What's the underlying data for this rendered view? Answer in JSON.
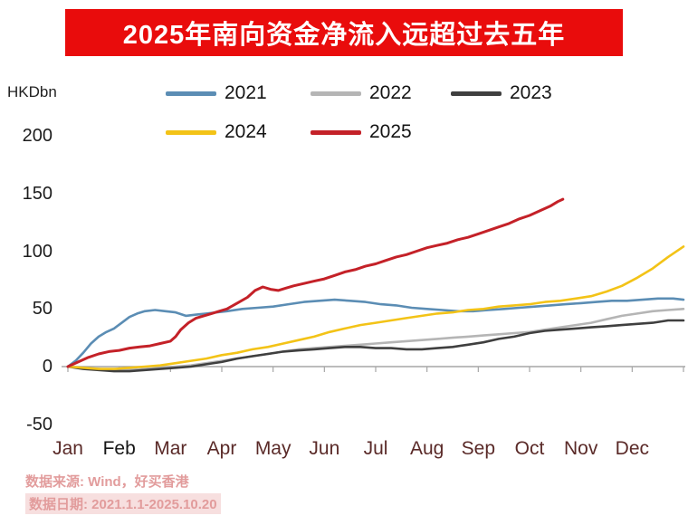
{
  "banner": {
    "title": "2025年南向资金净流入远超过去五年",
    "bg_color": "#e90c0c"
  },
  "axis": {
    "unit_label": "HKDbn",
    "y_ticks": [
      200,
      150,
      100,
      50,
      0,
      -50
    ],
    "x_labels": [
      "Jan",
      "Feb",
      "Mar",
      "Apr",
      "May",
      "Jun",
      "Jul",
      "Aug",
      "Sep",
      "Oct",
      "Nov",
      "Dec"
    ]
  },
  "legend": [
    {
      "label": "2021",
      "color": "#5b8db4"
    },
    {
      "label": "2022",
      "color": "#b5b5b5"
    },
    {
      "label": "2023",
      "color": "#3f3f3f"
    },
    {
      "label": "2024",
      "color": "#f3c317"
    },
    {
      "label": "2025",
      "color": "#c42128"
    }
  ],
  "chart_data": {
    "type": "line",
    "title": "2025年南向资金净流入远超过去五年",
    "ylabel": "HKDbn",
    "ylim": [
      -50,
      200
    ],
    "xlim_months": [
      0,
      12
    ],
    "x_unit": "months from Jan 1 (0 = Jan 1, 12 = Dec 31)",
    "grid": false,
    "legend_position": "top",
    "series": [
      {
        "name": "2021",
        "color": "#5b8db4",
        "x": [
          0,
          0.15,
          0.3,
          0.45,
          0.6,
          0.75,
          0.9,
          1.05,
          1.2,
          1.35,
          1.5,
          1.7,
          1.9,
          2.1,
          2.3,
          2.5,
          2.7,
          2.9,
          3.1,
          3.4,
          3.7,
          4.0,
          4.3,
          4.6,
          4.9,
          5.2,
          5.5,
          5.8,
          6.1,
          6.4,
          6.7,
          7.0,
          7.3,
          7.6,
          7.9,
          8.2,
          8.5,
          8.8,
          9.1,
          9.4,
          9.7,
          10.0,
          10.3,
          10.6,
          10.9,
          11.2,
          11.5,
          11.8,
          12.0
        ],
        "y": [
          0,
          5,
          12,
          20,
          26,
          30,
          33,
          38,
          43,
          46,
          48,
          49,
          48,
          47,
          44,
          45,
          46,
          47,
          48,
          50,
          51,
          52,
          54,
          56,
          57,
          58,
          57,
          56,
          54,
          53,
          51,
          50,
          49,
          48,
          48,
          49,
          50,
          51,
          52,
          53,
          54,
          55,
          56,
          57,
          57,
          58,
          59,
          59,
          58
        ]
      },
      {
        "name": "2022",
        "color": "#b5b5b5",
        "x": [
          0,
          0.3,
          0.6,
          0.9,
          1.2,
          1.5,
          1.8,
          2.1,
          2.4,
          2.7,
          3.0,
          3.3,
          3.6,
          3.9,
          4.2,
          4.5,
          4.8,
          5.1,
          5.4,
          5.7,
          6.0,
          6.3,
          6.6,
          6.9,
          7.2,
          7.5,
          7.8,
          8.1,
          8.4,
          8.7,
          9.0,
          9.3,
          9.6,
          9.9,
          10.2,
          10.5,
          10.8,
          11.1,
          11.4,
          11.7,
          12.0
        ],
        "y": [
          0,
          -1,
          -2,
          -3,
          -3,
          -2,
          -1,
          0,
          1,
          3,
          5,
          7,
          9,
          11,
          13,
          15,
          16,
          17,
          18,
          19,
          20,
          21,
          22,
          23,
          24,
          25,
          26,
          27,
          28,
          29,
          30,
          32,
          34,
          36,
          38,
          41,
          44,
          46,
          48,
          49,
          50
        ]
      },
      {
        "name": "2023",
        "color": "#3f3f3f",
        "x": [
          0,
          0.3,
          0.6,
          0.9,
          1.2,
          1.5,
          1.8,
          2.1,
          2.4,
          2.7,
          3.0,
          3.3,
          3.6,
          3.9,
          4.2,
          4.5,
          4.8,
          5.1,
          5.4,
          5.7,
          6.0,
          6.3,
          6.6,
          6.9,
          7.2,
          7.5,
          7.8,
          8.1,
          8.4,
          8.7,
          9.0,
          9.3,
          9.6,
          9.9,
          10.2,
          10.5,
          10.8,
          11.1,
          11.4,
          11.7,
          12.0
        ],
        "y": [
          0,
          -2,
          -3,
          -4,
          -4,
          -3,
          -2,
          -1,
          0,
          2,
          4,
          7,
          9,
          11,
          13,
          14,
          15,
          16,
          17,
          17,
          16,
          16,
          15,
          15,
          16,
          17,
          19,
          21,
          24,
          26,
          29,
          31,
          32,
          33,
          34,
          35,
          36,
          37,
          38,
          40,
          40
        ]
      },
      {
        "name": "2024",
        "color": "#f3c317",
        "x": [
          0,
          0.3,
          0.6,
          0.9,
          1.2,
          1.5,
          1.8,
          2.1,
          2.4,
          2.7,
          3.0,
          3.3,
          3.6,
          3.9,
          4.2,
          4.5,
          4.8,
          5.1,
          5.4,
          5.7,
          6.0,
          6.3,
          6.6,
          6.9,
          7.2,
          7.5,
          7.8,
          8.1,
          8.4,
          8.7,
          9.0,
          9.3,
          9.6,
          9.9,
          10.2,
          10.5,
          10.8,
          11.1,
          11.4,
          11.7,
          12.0
        ],
        "y": [
          0,
          -1,
          -2,
          -2,
          -1,
          0,
          1,
          3,
          5,
          7,
          10,
          12,
          15,
          17,
          20,
          23,
          26,
          30,
          33,
          36,
          38,
          40,
          42,
          44,
          46,
          47,
          49,
          50,
          52,
          53,
          54,
          56,
          57,
          59,
          61,
          65,
          70,
          77,
          85,
          95,
          104
        ]
      },
      {
        "name": "2025",
        "color": "#c42128",
        "x": [
          0,
          0.2,
          0.4,
          0.6,
          0.8,
          1.0,
          1.2,
          1.4,
          1.6,
          1.8,
          2.0,
          2.1,
          2.2,
          2.35,
          2.5,
          2.65,
          2.8,
          2.95,
          3.1,
          3.3,
          3.5,
          3.65,
          3.8,
          3.95,
          4.1,
          4.25,
          4.4,
          4.6,
          4.8,
          5.0,
          5.2,
          5.4,
          5.6,
          5.8,
          6.0,
          6.2,
          6.4,
          6.6,
          6.8,
          7.0,
          7.2,
          7.4,
          7.6,
          7.8,
          8.0,
          8.2,
          8.4,
          8.6,
          8.8,
          9.0,
          9.2,
          9.4,
          9.55,
          9.65
        ],
        "y": [
          0,
          4,
          8,
          11,
          13,
          14,
          16,
          17,
          18,
          20,
          22,
          26,
          32,
          38,
          42,
          44,
          46,
          48,
          50,
          55,
          60,
          66,
          69,
          67,
          66,
          68,
          70,
          72,
          74,
          76,
          79,
          82,
          84,
          87,
          89,
          92,
          95,
          97,
          100,
          103,
          105,
          107,
          110,
          112,
          115,
          118,
          121,
          124,
          128,
          131,
          135,
          139,
          143,
          145
        ]
      }
    ]
  },
  "footer": {
    "source": "数据来源: Wind，好买香港",
    "date": "数据日期: 2021.1.1-2025.10.20"
  }
}
